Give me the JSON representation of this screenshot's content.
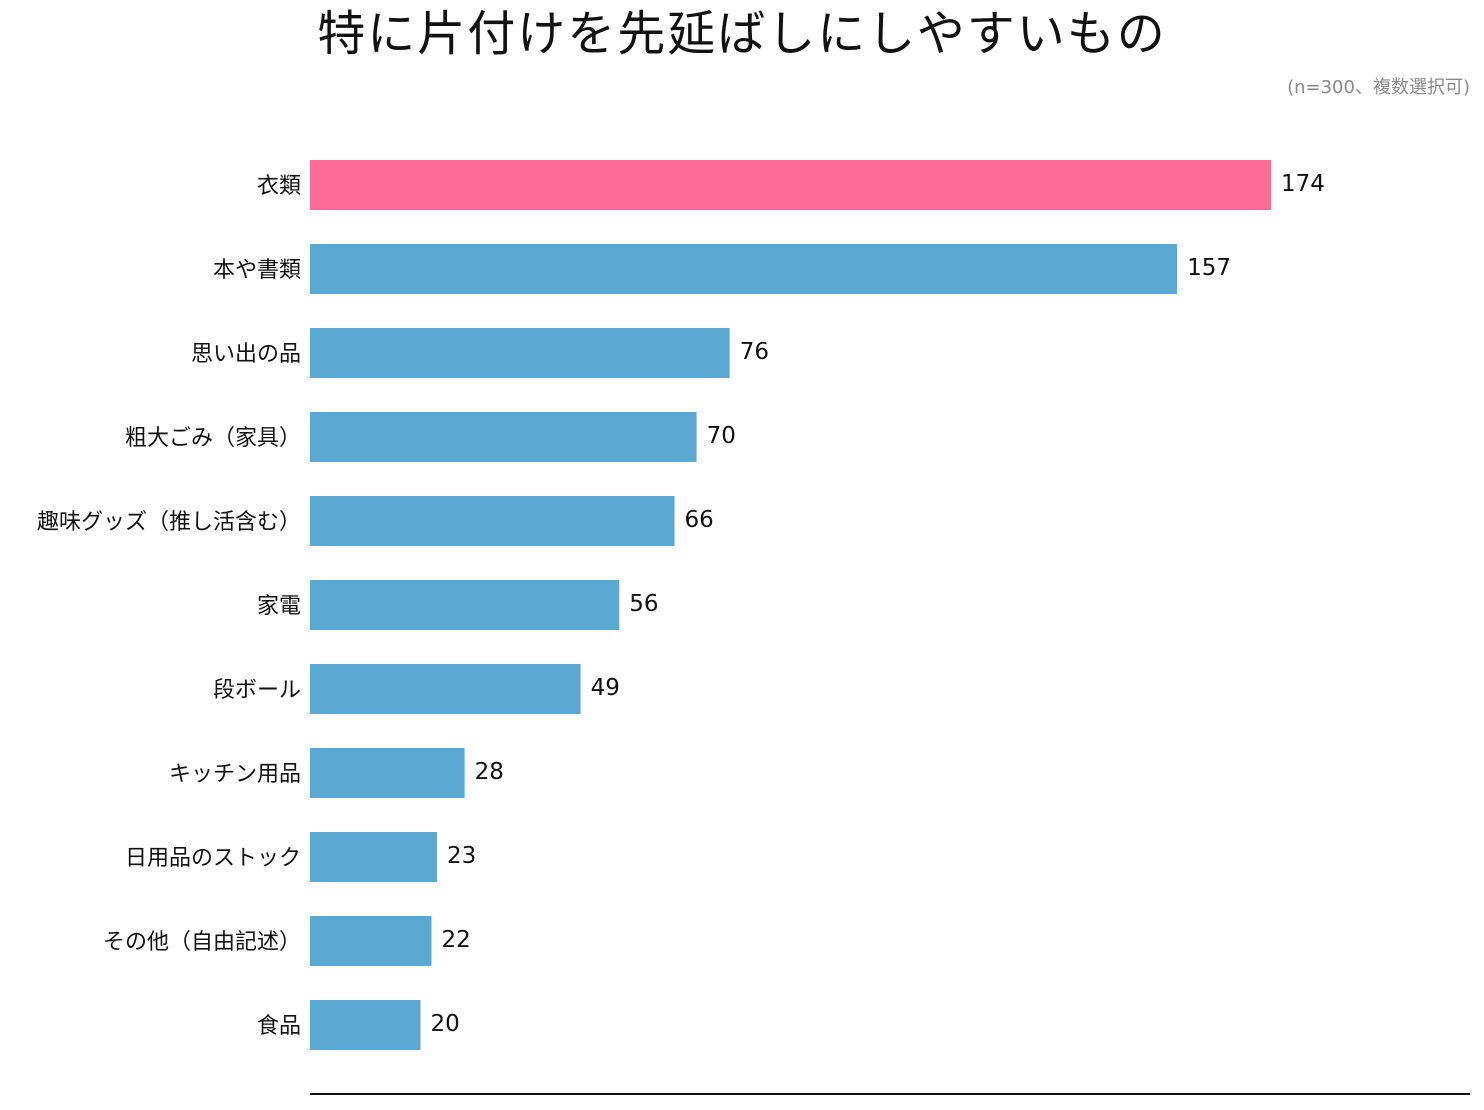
{
  "chart_data": {
    "type": "bar",
    "orientation": "horizontal",
    "title": "特に片付けを先延ばしにしやすいもの",
    "subtitle": "(n=300、複数選択可)",
    "categories": [
      "衣類",
      "本や書類",
      "思い出の品",
      "粗大ごみ（家具）",
      "趣味グッズ（推し活含む）",
      "家電",
      "段ボール",
      "キッチン用品",
      "日用品のストック",
      "その他（自由記述）",
      "食品"
    ],
    "values": [
      174,
      157,
      76,
      70,
      66,
      56,
      49,
      28,
      23,
      22,
      20
    ],
    "xlim": [
      0,
      210
    ],
    "grid": false,
    "legend": "none",
    "colors": {
      "highlight": "#ff6b9a",
      "default": "#5ba8d3",
      "axis": "#111111"
    },
    "highlight_index": 0
  }
}
